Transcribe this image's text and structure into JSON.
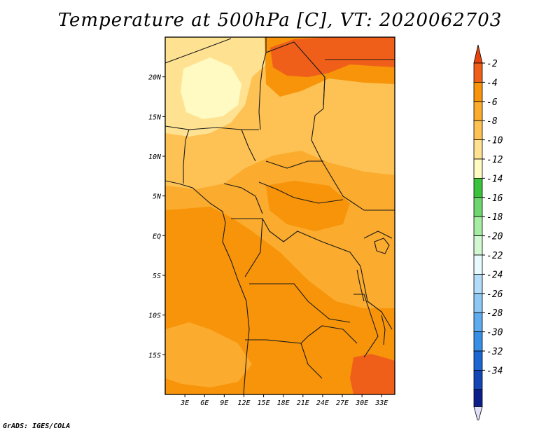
{
  "title": "Temperature at 500hPa [C], VT: 2020062703",
  "credit": "GrADS: IGES/COLA",
  "chart_data": {
    "type": "heatmap",
    "title": "Temperature at 500hPa [C], VT: 2020062703",
    "variable": "Temperature at 500hPa",
    "units": "C",
    "valid_time": "2020062703",
    "x_axis": {
      "range": [
        0,
        35
      ],
      "ticks": [
        {
          "value": 3,
          "label": "3E"
        },
        {
          "value": 6,
          "label": "6E"
        },
        {
          "value": 9,
          "label": "9E"
        },
        {
          "value": 12,
          "label": "12E"
        },
        {
          "value": 15,
          "label": "15E"
        },
        {
          "value": 18,
          "label": "18E"
        },
        {
          "value": 21,
          "label": "21E"
        },
        {
          "value": 24,
          "label": "24E"
        },
        {
          "value": 27,
          "label": "27E"
        },
        {
          "value": 30,
          "label": "30E"
        },
        {
          "value": 33,
          "label": "33E"
        }
      ]
    },
    "y_axis": {
      "range": [
        -20,
        25
      ],
      "ticks": [
        {
          "value": 20,
          "label": "20N"
        },
        {
          "value": 15,
          "label": "15N"
        },
        {
          "value": 10,
          "label": "10N"
        },
        {
          "value": 5,
          "label": "5N"
        },
        {
          "value": 0,
          "label": "EQ"
        },
        {
          "value": -5,
          "label": "5S"
        },
        {
          "value": -10,
          "label": "10S"
        },
        {
          "value": -15,
          "label": "15S"
        }
      ]
    },
    "colorbar": {
      "orientation": "vertical",
      "position": "right",
      "levels": [
        {
          "label": "-2",
          "value": -2,
          "color": "#f05f19"
        },
        {
          "label": "-4",
          "value": -4,
          "color": "#f79409"
        },
        {
          "label": "-6",
          "value": -6,
          "color": "#fbab2d"
        },
        {
          "label": "-8",
          "value": -8,
          "color": "#fdc253"
        },
        {
          "label": "-10",
          "value": -10,
          "color": "#fee291"
        },
        {
          "label": "-12",
          "value": -12,
          "color": "#fefac2"
        },
        {
          "label": "-14",
          "value": -14,
          "color": "#3cc33c"
        },
        {
          "label": "-16",
          "value": -16,
          "color": "#6fd66f"
        },
        {
          "label": "-18",
          "value": -18,
          "color": "#a4eda2"
        },
        {
          "label": "-20",
          "value": -20,
          "color": "#d1f8d1"
        },
        {
          "label": "-22",
          "value": -22,
          "color": "#e8fafd"
        },
        {
          "label": "-24",
          "value": -24,
          "color": "#b3dcf8"
        },
        {
          "label": "-26",
          "value": -26,
          "color": "#8ec9f5"
        },
        {
          "label": "-28",
          "value": -28,
          "color": "#5cacee"
        },
        {
          "label": "-30",
          "value": -30,
          "color": "#378fe5"
        },
        {
          "label": "-32",
          "value": -32,
          "color": "#1c66d3"
        },
        {
          "label": "-34",
          "value": -34,
          "color": "#1346b4"
        }
      ],
      "top_color": "#e8430d",
      "bottom_colors": [
        "#0c1e8a",
        "#e0e0f6"
      ]
    },
    "regions": [
      {
        "name": "northeast-max",
        "value_range": "-4 to -2",
        "color": "#f05f19"
      },
      {
        "name": "southeast-max",
        "value_range": "-4 to -2",
        "color": "#f05f19"
      },
      {
        "name": "northwest-sahara-min",
        "value_range": "-12 to -10",
        "color": "#fefac2"
      },
      {
        "name": "sahel-band",
        "value_range": "-10 to -8",
        "color": "#fee291"
      },
      {
        "name": "central-band",
        "value_range": "-8 to -6",
        "color": "#fbab2d"
      },
      {
        "name": "southern-core",
        "value_range": "-6 to -4",
        "color": "#f79409"
      }
    ]
  }
}
